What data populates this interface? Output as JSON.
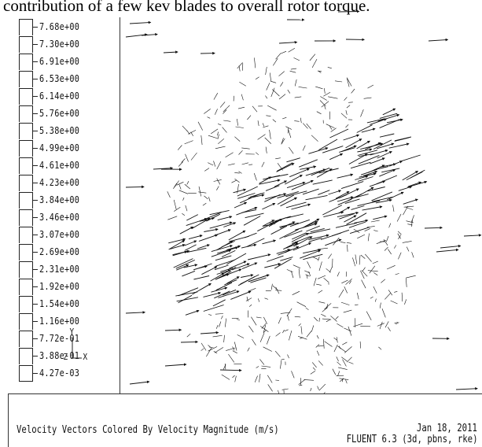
{
  "caption": "contribution of a few kev blades to overall rotor torque.",
  "legend": {
    "values": [
      "7.68e+00",
      "7.30e+00",
      "6.91e+00",
      "6.53e+00",
      "6.14e+00",
      "5.76e+00",
      "5.38e+00",
      "4.99e+00",
      "4.61e+00",
      "4.23e+00",
      "3.84e+00",
      "3.46e+00",
      "3.07e+00",
      "2.69e+00",
      "2.31e+00",
      "1.92e+00",
      "1.54e+00",
      "1.16e+00",
      "7.72e-01",
      "3.88e-01",
      "4.27e-03"
    ]
  },
  "axes": {
    "y_label": "Y",
    "z_label": "Z",
    "x_label": "X"
  },
  "footer": {
    "title": "Velocity Vectors Colored By Velocity Magnitude (m/s)",
    "date": "Jan 18, 2011",
    "software": "FLUENT 6.3 (3d, pbns, rke)"
  },
  "colors": {
    "vector": "#111111",
    "background": "#ffffff"
  }
}
